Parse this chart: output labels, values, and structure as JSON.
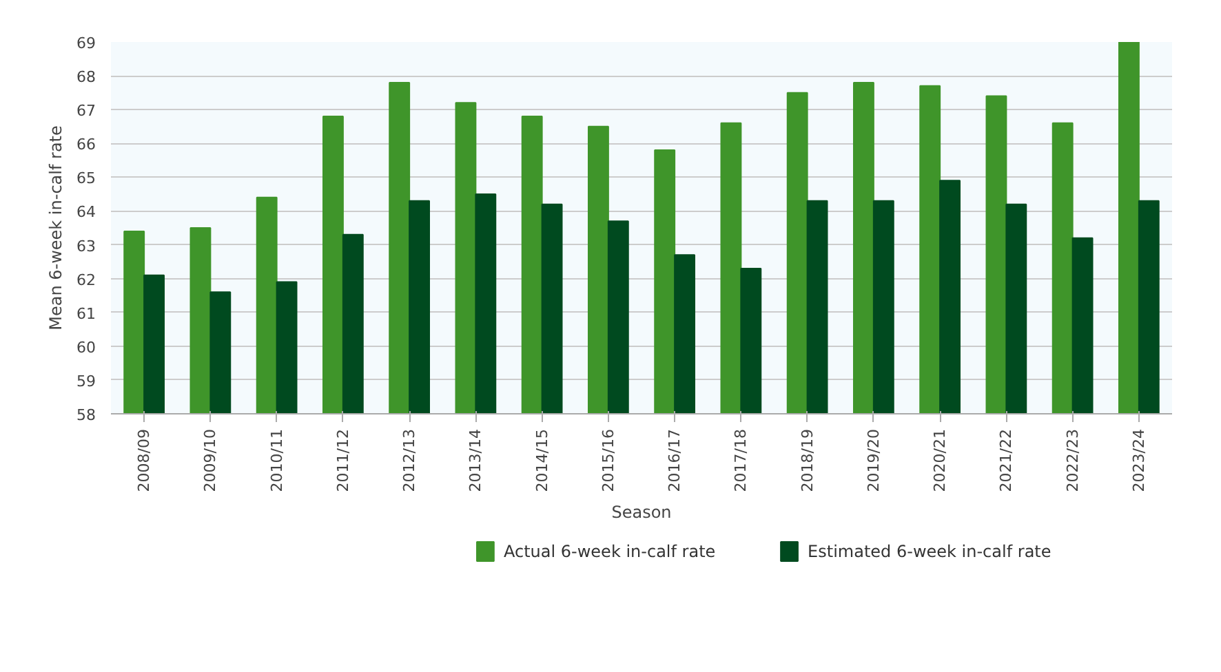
{
  "chart_data": {
    "type": "bar",
    "xlabel": "Season",
    "ylabel": "Mean 6-week in-calf rate",
    "categories": [
      "2008/09",
      "2009/10",
      "2010/11",
      "2011/12",
      "2012/13",
      "2013/14",
      "2014/15",
      "2015/16",
      "2016/17",
      "2017/18",
      "2018/19",
      "2019/20",
      "2020/21",
      "2021/22",
      "2022/23",
      "2023/24"
    ],
    "series": [
      {
        "name": "Actual 6-week in-calf rate",
        "color": "#3f952a",
        "values": [
          63.4,
          63.5,
          64.4,
          66.8,
          67.8,
          67.2,
          66.8,
          66.5,
          65.8,
          66.6,
          67.5,
          67.8,
          67.7,
          67.4,
          66.6,
          69.0
        ]
      },
      {
        "name": "Estimated 6-week in-calf rate",
        "color": "#004a1f",
        "values": [
          62.1,
          61.6,
          61.9,
          63.3,
          64.3,
          64.5,
          64.2,
          63.7,
          62.7,
          62.3,
          64.3,
          64.3,
          64.9,
          64.2,
          63.2,
          64.3
        ]
      }
    ],
    "ylim": [
      58,
      69
    ],
    "yticks": [
      58,
      59,
      60,
      61,
      62,
      63,
      64,
      65,
      66,
      67,
      68,
      69
    ],
    "grid": "y",
    "legend": "bottom"
  }
}
